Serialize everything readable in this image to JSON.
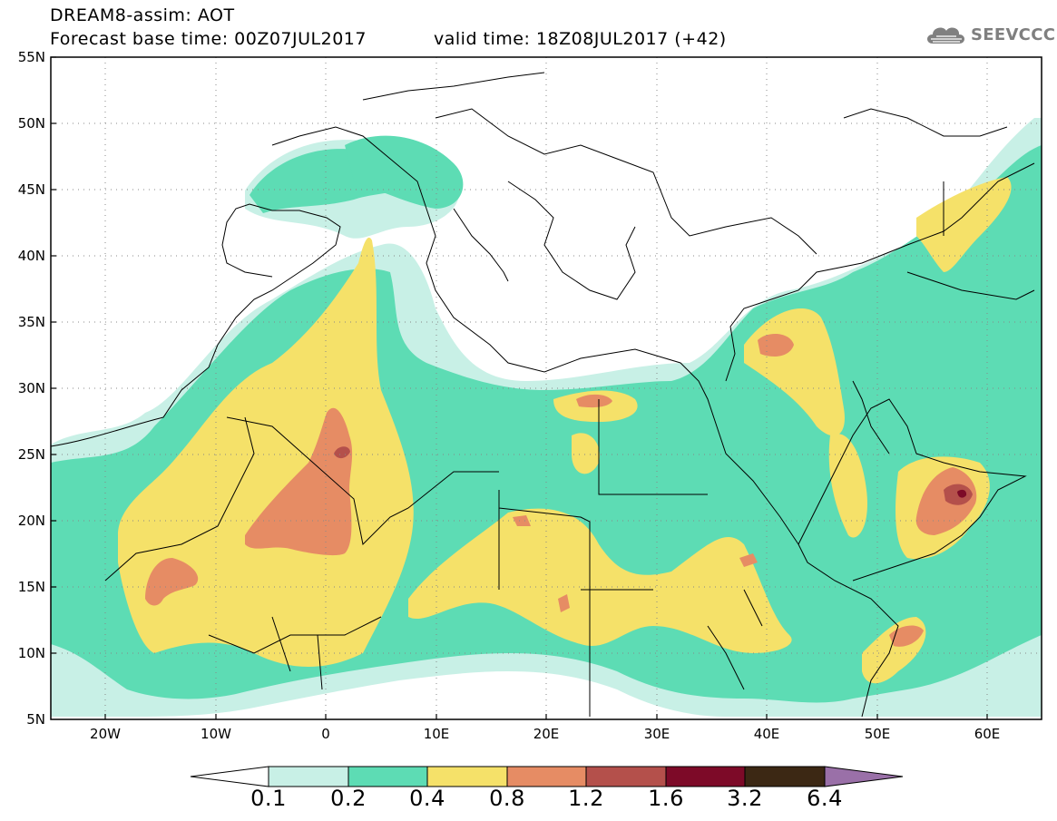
{
  "header": {
    "title": "DREAM8-assim: AOT",
    "base_time": "Forecast base time: 00Z07JUL2017",
    "valid_time": "valid time: 18Z08JUL2017 (+42)",
    "logo_text": "SEEVCCC"
  },
  "map": {
    "lat_labels": [
      "55N",
      "50N",
      "45N",
      "40N",
      "35N",
      "30N",
      "25N",
      "20N",
      "15N",
      "10N",
      "5N"
    ],
    "lon_labels": [
      "20W",
      "10W",
      "0",
      "10E",
      "20E",
      "30E",
      "40E",
      "50E",
      "60E"
    ],
    "lat_range": [
      5,
      55
    ],
    "lon_range": [
      -25,
      65
    ]
  },
  "colorbar": {
    "labels": [
      "0.1",
      "0.2",
      "0.4",
      "0.8",
      "1.2",
      "1.6",
      "3.2",
      "6.4"
    ],
    "colors": [
      "#c8f0e6",
      "#5ddcb4",
      "#f5e169",
      "#e68c64",
      "#b4504b",
      "#7d0a28",
      "#3c2814",
      "#9a70a8"
    ]
  }
}
